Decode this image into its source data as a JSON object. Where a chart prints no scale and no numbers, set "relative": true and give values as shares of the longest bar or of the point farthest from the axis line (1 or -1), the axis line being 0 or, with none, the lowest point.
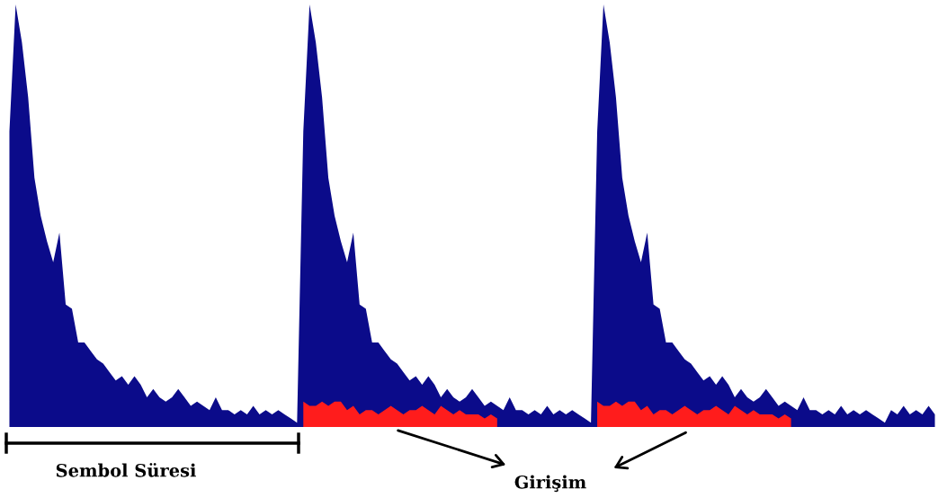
{
  "chart_data": {
    "type": "area",
    "relative": true,
    "tick_labels": false,
    "categories": [
      null,
      null,
      null,
      null,
      null,
      null,
      null,
      null,
      null,
      null,
      null,
      null,
      null,
      null,
      null,
      null,
      null,
      null,
      null,
      null,
      null,
      null,
      null,
      null,
      null,
      null,
      null,
      null,
      null,
      null,
      null,
      null,
      null,
      null,
      null,
      null,
      null,
      null,
      null,
      null,
      null,
      null,
      null,
      null,
      null,
      null,
      null,
      null,
      null,
      null,
      null,
      null,
      null,
      null,
      null,
      null,
      null,
      null,
      null,
      null,
      null,
      null,
      null,
      null,
      null,
      null,
      null,
      null,
      null,
      null,
      null,
      null,
      null,
      null,
      null,
      null,
      null,
      null,
      null,
      null,
      null,
      null,
      null,
      null,
      null,
      null,
      null,
      null,
      null,
      null,
      null,
      null,
      null,
      null,
      null,
      null,
      null,
      null,
      null,
      null,
      null,
      null,
      null,
      null,
      null,
      null,
      null,
      null,
      null,
      null,
      null,
      null,
      null,
      null,
      null,
      null,
      null,
      null,
      null,
      null,
      null,
      null,
      null,
      null,
      null,
      null,
      null,
      null,
      null,
      null,
      null,
      null,
      null,
      null,
      null,
      null,
      null,
      null,
      null,
      null,
      null,
      null,
      null,
      null,
      null,
      null,
      null,
      null,
      null
    ],
    "series": [
      {
        "color": "#0b0b8a",
        "values": [
          0.7,
          1.0,
          0.91,
          0.78,
          0.59,
          0.5,
          0.44,
          0.39,
          0.46,
          0.29,
          0.28,
          0.2,
          0.2,
          0.18,
          0.16,
          0.15,
          0.13,
          0.11,
          0.12,
          0.1,
          0.12,
          0.1,
          0.07,
          0.09,
          0.07,
          0.06,
          0.07,
          0.09,
          0.07,
          0.05,
          0.06,
          0.05,
          0.04,
          0.07,
          0.04,
          0.04,
          0.03,
          0.04,
          0.03,
          0.05,
          0.03,
          0.04,
          0.03,
          0.04,
          0.03,
          0.02,
          0.01,
          0.7,
          1.0,
          0.91,
          0.78,
          0.59,
          0.5,
          0.44,
          0.39,
          0.46,
          0.29,
          0.28,
          0.2,
          0.2,
          0.18,
          0.16,
          0.15,
          0.13,
          0.11,
          0.12,
          0.1,
          0.12,
          0.1,
          0.07,
          0.09,
          0.07,
          0.06,
          0.07,
          0.09,
          0.07,
          0.05,
          0.06,
          0.05,
          0.04,
          0.07,
          0.04,
          0.04,
          0.03,
          0.04,
          0.03,
          0.05,
          0.03,
          0.04,
          0.03,
          0.04,
          0.03,
          0.02,
          0.01,
          0.7,
          1.0,
          0.91,
          0.78,
          0.59,
          0.5,
          0.44,
          0.39,
          0.46,
          0.29,
          0.28,
          0.2,
          0.2,
          0.18,
          0.16,
          0.15,
          0.13,
          0.11,
          0.12,
          0.1,
          0.12,
          0.1,
          0.07,
          0.09,
          0.07,
          0.06,
          0.07,
          0.09,
          0.07,
          0.05,
          0.06,
          0.05,
          0.04,
          0.07,
          0.04,
          0.04,
          0.03,
          0.04,
          0.03,
          0.05,
          0.03,
          0.04,
          0.03,
          0.04,
          0.03,
          0.02,
          0.01,
          0.04,
          0.03,
          0.05,
          0.03,
          0.04,
          0.03,
          0.05,
          0.03
        ]
      },
      {
        "color": "#ff1c1c",
        "values": [
          null,
          null,
          null,
          null,
          null,
          null,
          null,
          null,
          null,
          null,
          null,
          null,
          null,
          null,
          null,
          null,
          null,
          null,
          null,
          null,
          null,
          null,
          null,
          null,
          null,
          null,
          null,
          null,
          null,
          null,
          null,
          null,
          null,
          null,
          null,
          null,
          null,
          null,
          null,
          null,
          null,
          null,
          null,
          null,
          null,
          null,
          null,
          0.06,
          0.05,
          0.05,
          0.06,
          0.05,
          0.06,
          0.06,
          0.04,
          0.05,
          0.03,
          0.04,
          0.04,
          0.03,
          0.04,
          0.05,
          0.04,
          0.03,
          0.04,
          0.04,
          0.05,
          0.04,
          0.03,
          0.05,
          0.04,
          0.03,
          0.04,
          0.03,
          0.03,
          0.03,
          0.02,
          0.03,
          0.02,
          null,
          null,
          null,
          null,
          null,
          null,
          null,
          null,
          null,
          null,
          null,
          null,
          null,
          null,
          null,
          0.06,
          0.05,
          0.05,
          0.06,
          0.05,
          0.06,
          0.06,
          0.04,
          0.05,
          0.03,
          0.04,
          0.04,
          0.03,
          0.04,
          0.05,
          0.04,
          0.03,
          0.04,
          0.04,
          0.05,
          0.04,
          0.03,
          0.05,
          0.04,
          0.03,
          0.04,
          0.03,
          0.03,
          0.03,
          0.02,
          0.03,
          0.02,
          null,
          null,
          null,
          null,
          null,
          null,
          null,
          null,
          null,
          null,
          null,
          null,
          null,
          null,
          null,
          null,
          null,
          null,
          null,
          null,
          null,
          null,
          null
        ]
      }
    ],
    "annotations": [
      "Sembol Süresi",
      "Girişim"
    ]
  }
}
